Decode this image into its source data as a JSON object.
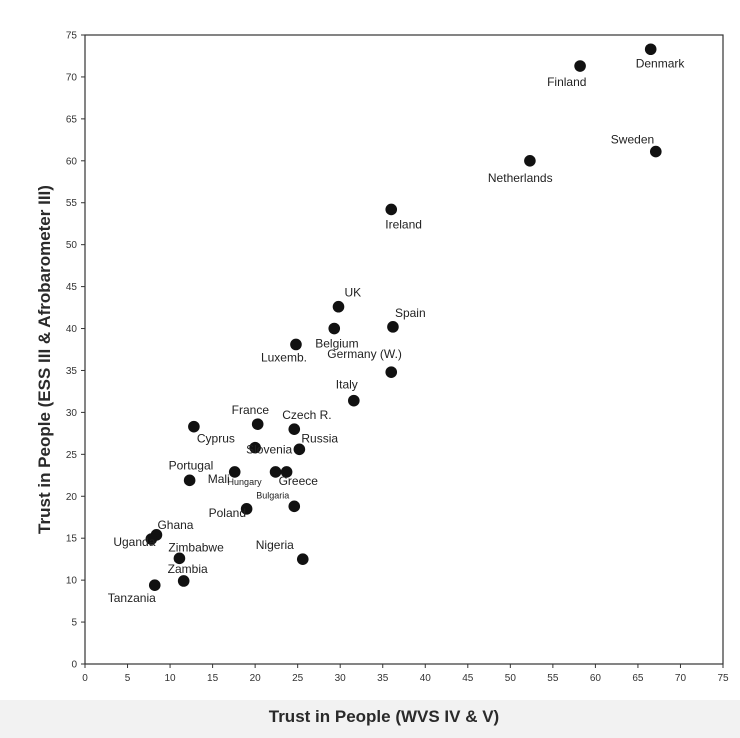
{
  "chart_data": {
    "type": "scatter",
    "xlabel": "Trust in People (WVS IV & V)",
    "ylabel": "Trust in People (ESS III & Afrobarometer III)",
    "xlim": [
      0,
      75
    ],
    "ylim": [
      0,
      75
    ],
    "x_ticks": [
      "0",
      "5",
      "10",
      "15",
      "20",
      "25",
      "30",
      "35",
      "40",
      "45",
      "50",
      "55",
      "60",
      "65",
      "70",
      "75"
    ],
    "y_ticks": [
      "0",
      "5",
      "10",
      "15",
      "20",
      "25",
      "30",
      "35",
      "40",
      "45",
      "50",
      "55",
      "60",
      "65",
      "70",
      "75"
    ],
    "grid": false,
    "point_color": "#111111",
    "points": [
      {
        "label": "Denmark",
        "x": 66.5,
        "y": 73.3
      },
      {
        "label": "Finland",
        "x": 58.2,
        "y": 71.3
      },
      {
        "label": "Sweden",
        "x": 67.1,
        "y": 61.1
      },
      {
        "label": "Netherlands",
        "x": 52.3,
        "y": 60.0
      },
      {
        "label": "Ireland",
        "x": 36.0,
        "y": 54.2
      },
      {
        "label": "UK",
        "x": 29.8,
        "y": 42.6
      },
      {
        "label": "Spain",
        "x": 36.2,
        "y": 40.2
      },
      {
        "label": "Belgium",
        "x": 29.3,
        "y": 40.0
      },
      {
        "label": "Luxemb.",
        "x": 24.8,
        "y": 38.1
      },
      {
        "label": "Germany (W.)",
        "x": 36.0,
        "y": 34.8
      },
      {
        "label": "Italy",
        "x": 31.6,
        "y": 31.4
      },
      {
        "label": "France",
        "x": 20.3,
        "y": 28.6
      },
      {
        "label": "Czech R.",
        "x": 24.6,
        "y": 28.0
      },
      {
        "label": "Cyprus",
        "x": 12.8,
        "y": 28.3
      },
      {
        "label": "Russia",
        "x": 25.2,
        "y": 25.6
      },
      {
        "label": "Slovenia",
        "x": 20.0,
        "y": 25.8
      },
      {
        "label": "Greece",
        "x": 23.7,
        "y": 22.9
      },
      {
        "label": "Hungary",
        "x": 22.4,
        "y": 22.9
      },
      {
        "label": "Mali",
        "x": 17.6,
        "y": 22.9
      },
      {
        "label": "Portugal",
        "x": 12.3,
        "y": 21.9
      },
      {
        "label": "Bulgaria",
        "x": 24.6,
        "y": 18.8
      },
      {
        "label": "Poland",
        "x": 19.0,
        "y": 18.5
      },
      {
        "label": "Ghana",
        "x": 8.4,
        "y": 15.4
      },
      {
        "label": "Uganda",
        "x": 7.8,
        "y": 14.9
      },
      {
        "label": "Zimbabwe",
        "x": 11.1,
        "y": 12.6
      },
      {
        "label": "Nigeria",
        "x": 25.6,
        "y": 12.5
      },
      {
        "label": "Zambia",
        "x": 11.6,
        "y": 9.9
      },
      {
        "label": "Tanzania",
        "x": 8.2,
        "y": 9.4
      }
    ]
  }
}
